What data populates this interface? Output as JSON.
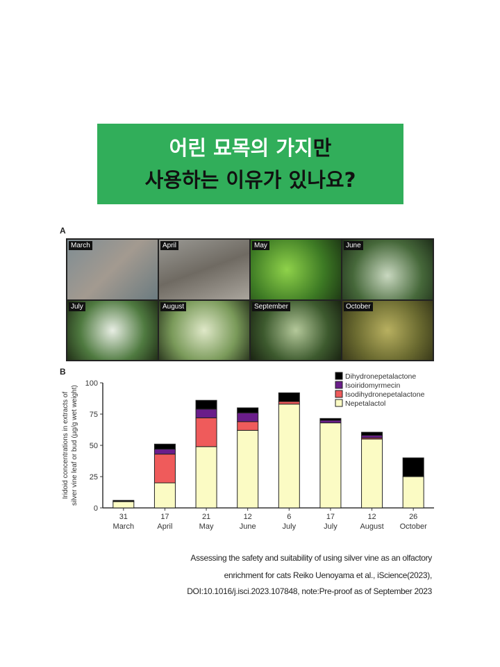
{
  "banner": {
    "line1_white": "어린 묘목의 가지",
    "line1_black": "만",
    "line2": "사용하는 이유가 있나요?"
  },
  "panel_a": {
    "label": "A",
    "photos": [
      "March",
      "April",
      "May",
      "June",
      "July",
      "August",
      "September",
      "October"
    ]
  },
  "panel_b": {
    "label": "B"
  },
  "chart_data": {
    "type": "bar",
    "stacked": true,
    "categories": [
      "31\nMarch",
      "17\nApril",
      "21\nMay",
      "12\nJune",
      "6\nJuly",
      "17\nJuly",
      "12\nAugust",
      "26\nOctober"
    ],
    "tick_days": [
      "31",
      "17",
      "21",
      "12",
      "6",
      "17",
      "12",
      "26"
    ],
    "tick_months": [
      "March",
      "April",
      "May",
      "June",
      "July",
      "July",
      "August",
      "October"
    ],
    "ylabel_line1": "Iridoid concentrations in extracts of",
    "ylabel_line2": "silver vine leaf or bud (µg/g wet weight)",
    "ylim": [
      0,
      100
    ],
    "yticks": [
      0,
      25,
      50,
      75,
      100
    ],
    "legend_position": "top-right",
    "series": [
      {
        "name": "Nepetalactol",
        "color": "#fbfbc4",
        "values": [
          5,
          20,
          49,
          62,
          83,
          68,
          55,
          25
        ]
      },
      {
        "name": "Isodihydronepetalactone",
        "color": "#ef5b5b",
        "values": [
          0,
          23,
          23,
          7,
          2,
          0,
          1,
          0
        ]
      },
      {
        "name": "Isoiridomyrmecin",
        "color": "#6a1d8a",
        "values": [
          0,
          4,
          7,
          7,
          0,
          2,
          2,
          0
        ]
      },
      {
        "name": "Dihydronepetalactone",
        "color": "#000000",
        "values": [
          1,
          4,
          7,
          4,
          7,
          1.5,
          2.5,
          15
        ]
      }
    ]
  },
  "citation": [
    "Assessing the safety and suitability of using silver vine as an olfactory",
    "enrichment for cats Reiko Uenoyama et al., iScience(2023),",
    "DOI:10.1016/j.isci.2023.107848, note:Pre-proof as of September 2023"
  ]
}
